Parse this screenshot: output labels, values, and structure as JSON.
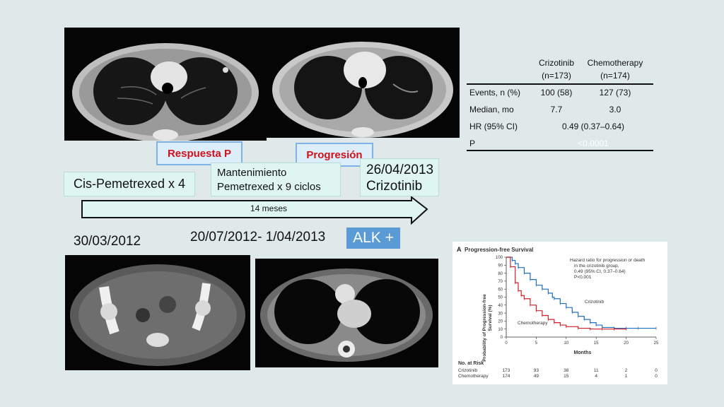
{
  "labels": {
    "respuesta": "Respuesta P",
    "progresion": "Progresión",
    "cis": "Cis-Pemetrexed x 4",
    "mant_line1": "Mantenimiento",
    "mant_line2": "Pemetrexed x 9 ciclos",
    "date_right_line1": "26/04/2013",
    "date_right_line2": "Crizotinib",
    "arrow_text": "14 meses",
    "date_left": "30/03/2012",
    "date_mid": "20/07/2012- 1/04/2013",
    "alk": "ALK +"
  },
  "table": {
    "col1_name": "Crizotinib",
    "col1_n": "(n=173)",
    "col2_name": "Chemotherapy",
    "col2_n": "(n=174)",
    "rows": [
      {
        "label": "Events, n (%)",
        "c1": "100 (58)",
        "c2": "127 (73)"
      },
      {
        "label": "Median, mo",
        "c1": "7.7",
        "c2": "3.0"
      },
      {
        "label": "HR (95% CI)",
        "span": "0.49 (0.37–0.64)"
      },
      {
        "label": "P",
        "span": "<0.0001"
      }
    ]
  },
  "km": {
    "panel": "A",
    "title": "Progression-free Survival",
    "hr_note_1": "Hazard ratio for progression or death",
    "hr_note_2": "in the crizotinib group,",
    "hr_note_3": "0.49 (95% CI, 0.37–0.64)",
    "hr_note_4": "P<0.001",
    "ylabel_1": "Probability of Progression-free",
    "ylabel_2": "Survival (%)",
    "xlabel": "Months",
    "series_crizotinib": "Crizotinib",
    "series_chemo": "Chemotherapy",
    "risk_title": "No. at Risk",
    "risk_rows": [
      {
        "name": "Crizotinib",
        "vals": [
          "173",
          "93",
          "38",
          "11",
          "2",
          "0"
        ]
      },
      {
        "name": "Chemotherapy",
        "vals": [
          "174",
          "49",
          "15",
          "4",
          "1",
          "0"
        ]
      }
    ],
    "colors": {
      "crizotinib": "#1f6fc0",
      "chemo": "#d21f26"
    }
  },
  "chart_data": {
    "type": "line",
    "title": "Progression-free Survival",
    "xlabel": "Months",
    "ylabel": "Probability of Progression-free Survival (%)",
    "xlim": [
      0,
      25
    ],
    "ylim": [
      0,
      100
    ],
    "xticks": [
      0,
      5,
      10,
      15,
      20,
      25
    ],
    "yticks": [
      0,
      10,
      20,
      30,
      40,
      50,
      60,
      70,
      80,
      90,
      100
    ],
    "series": [
      {
        "name": "Crizotinib",
        "color": "#1f6fc0",
        "x": [
          0,
          1,
          1.5,
          2,
          3,
          4,
          5,
          6,
          7,
          7.7,
          8,
          9,
          10,
          11,
          12,
          13,
          14,
          15,
          16,
          18,
          20,
          22,
          25
        ],
        "y": [
          100,
          96,
          92,
          87,
          80,
          72,
          65,
          60,
          55,
          50,
          48,
          42,
          37,
          31,
          26,
          22,
          18,
          15,
          12,
          11,
          11,
          11,
          11
        ]
      },
      {
        "name": "Chemotherapy",
        "color": "#d21f26",
        "x": [
          0,
          0.7,
          1.5,
          2,
          2.5,
          3,
          4,
          5,
          6,
          7,
          8,
          9,
          10,
          12,
          14,
          16,
          18,
          20
        ],
        "y": [
          100,
          88,
          68,
          58,
          52,
          48,
          40,
          33,
          27,
          22,
          18,
          15,
          13,
          11,
          10,
          10,
          10,
          10
        ]
      }
    ]
  }
}
